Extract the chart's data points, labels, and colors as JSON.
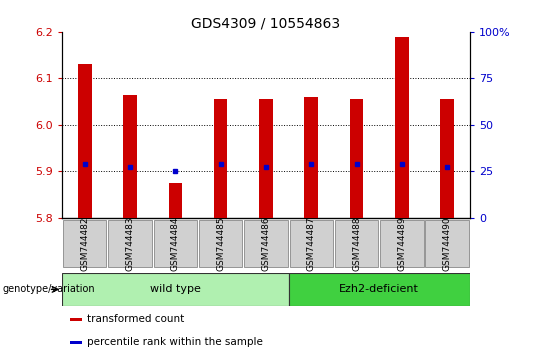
{
  "title": "GDS4309 / 10554863",
  "samples": [
    "GSM744482",
    "GSM744483",
    "GSM744484",
    "GSM744485",
    "GSM744486",
    "GSM744487",
    "GSM744488",
    "GSM744489",
    "GSM744490"
  ],
  "transformed_count": [
    6.13,
    6.065,
    5.875,
    6.055,
    6.055,
    6.06,
    6.055,
    6.19,
    6.055
  ],
  "percentile_rank": [
    5.915,
    5.91,
    5.9,
    5.915,
    5.91,
    5.915,
    5.915,
    5.915,
    5.91
  ],
  "bar_bottom": 5.8,
  "ylim": [
    5.8,
    6.2
  ],
  "yticks": [
    5.8,
    5.9,
    6.0,
    6.1,
    6.2
  ],
  "right_yticks_vals": [
    5.8,
    5.9,
    6.0,
    6.1,
    6.2
  ],
  "right_yticks_labels": [
    "0",
    "25",
    "50",
    "75",
    "100%"
  ],
  "bar_color": "#cc0000",
  "percentile_color": "#0000cc",
  "tick_color_left": "#cc0000",
  "tick_color_right": "#0000cc",
  "groups": [
    {
      "label": "wild type",
      "start": 0,
      "end": 5,
      "color": "#b0f0b0"
    },
    {
      "label": "Ezh2-deficient",
      "start": 5,
      "end": 9,
      "color": "#40d040"
    }
  ],
  "group_label_prefix": "genotype/variation",
  "legend_items": [
    {
      "label": "transformed count",
      "color": "#cc0000"
    },
    {
      "label": "percentile rank within the sample",
      "color": "#0000cc"
    }
  ],
  "bar_width": 0.3,
  "background_color": "#ffffff",
  "title_fontsize": 10,
  "tick_label_fontsize": 7,
  "xtick_bg_color": "#d0d0d0"
}
